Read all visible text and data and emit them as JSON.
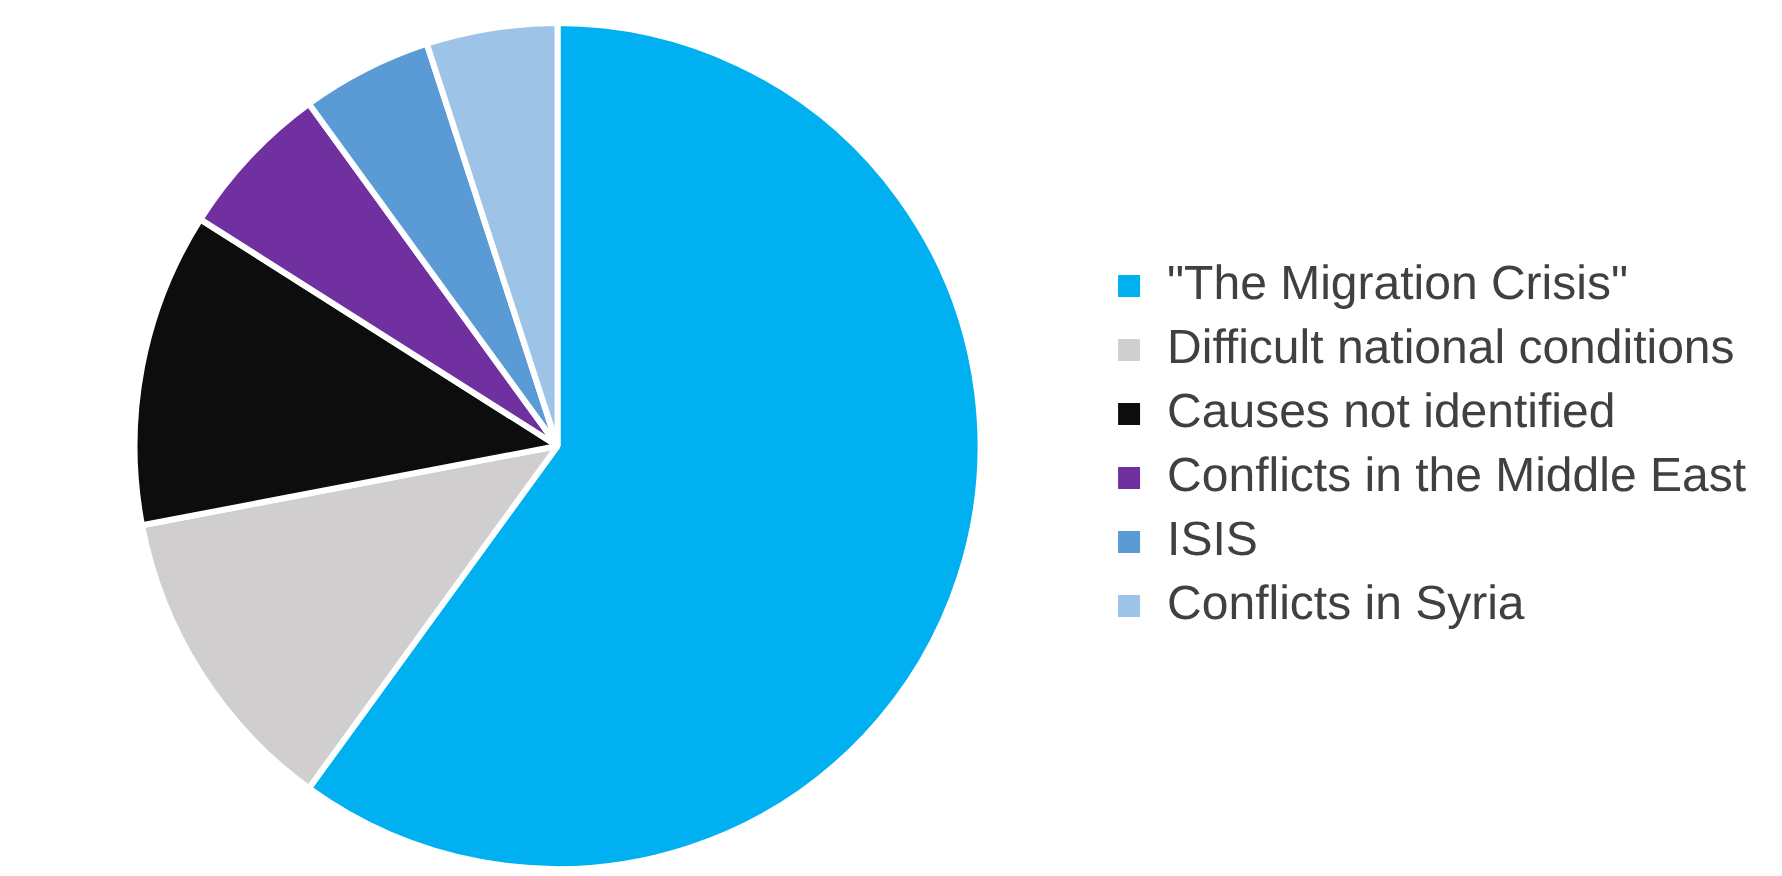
{
  "chart_data": {
    "type": "pie",
    "categories": [
      "\"The Migration Crisis\"",
      "Difficult national conditions",
      "Causes not identified",
      "Conflicts in the Middle East",
      "ISIS",
      "Conflicts in Syria"
    ],
    "values": [
      60,
      12,
      12,
      6,
      5,
      5
    ],
    "colors": [
      "#00b0f0",
      "#d0cecf",
      "#0d0d0d",
      "#7030a0",
      "#5b9bd5",
      "#9dc3e6"
    ],
    "legend": "right"
  }
}
